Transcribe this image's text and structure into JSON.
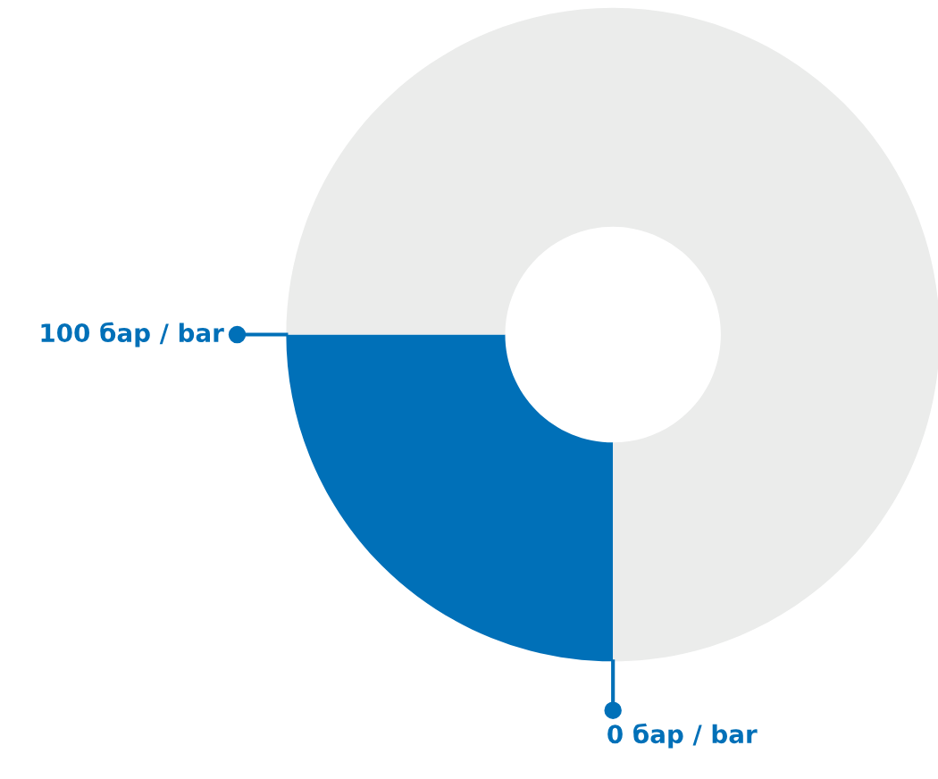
{
  "chart_data": {
    "type": "donut",
    "categories": [
      null,
      null
    ],
    "values": [
      25,
      75
    ],
    "colors": [
      "#0070b8",
      "#ebeceb"
    ],
    "annotations": [
      "100 бар / bar",
      "0 бар / bar"
    ]
  }
}
